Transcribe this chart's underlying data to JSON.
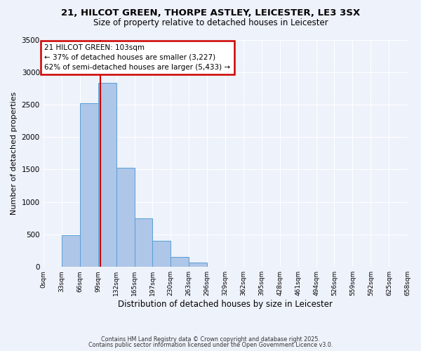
{
  "title1": "21, HILCOT GREEN, THORPE ASTLEY, LEICESTER, LE3 3SX",
  "title2": "Size of property relative to detached houses in Leicester",
  "xlabel": "Distribution of detached houses by size in Leicester",
  "ylabel": "Number of detached properties",
  "bar_edges": [
    0,
    33,
    66,
    99,
    132,
    165,
    197,
    230,
    263,
    296,
    329,
    362,
    395,
    428,
    461,
    494,
    526,
    559,
    592,
    625,
    658
  ],
  "bar_heights": [
    0,
    490,
    2520,
    2840,
    1530,
    750,
    400,
    155,
    65,
    0,
    0,
    0,
    0,
    0,
    0,
    0,
    0,
    0,
    0,
    0
  ],
  "tick_labels": [
    "0sqm",
    "33sqm",
    "66sqm",
    "99sqm",
    "132sqm",
    "165sqm",
    "197sqm",
    "230sqm",
    "263sqm",
    "296sqm",
    "329sqm",
    "362sqm",
    "395sqm",
    "428sqm",
    "461sqm",
    "494sqm",
    "526sqm",
    "559sqm",
    "592sqm",
    "625sqm",
    "658sqm"
  ],
  "bar_color": "#aec6e8",
  "bar_edge_color": "#5a9fd4",
  "vline_x": 103,
  "vline_color": "#cc0000",
  "annotation_title": "21 HILCOT GREEN: 103sqm",
  "annotation_line1": "← 37% of detached houses are smaller (3,227)",
  "annotation_line2": "62% of semi-detached houses are larger (5,433) →",
  "annotation_box_color": "#cc0000",
  "ylim": [
    0,
    3500
  ],
  "yticks": [
    0,
    500,
    1000,
    1500,
    2000,
    2500,
    3000,
    3500
  ],
  "bg_color": "#eef2fb",
  "grid_color": "#ffffff",
  "footer1": "Contains HM Land Registry data © Crown copyright and database right 2025.",
  "footer2": "Contains public sector information licensed under the Open Government Licence v3.0.",
  "title1_fontsize": 9.5,
  "title2_fontsize": 8.5
}
